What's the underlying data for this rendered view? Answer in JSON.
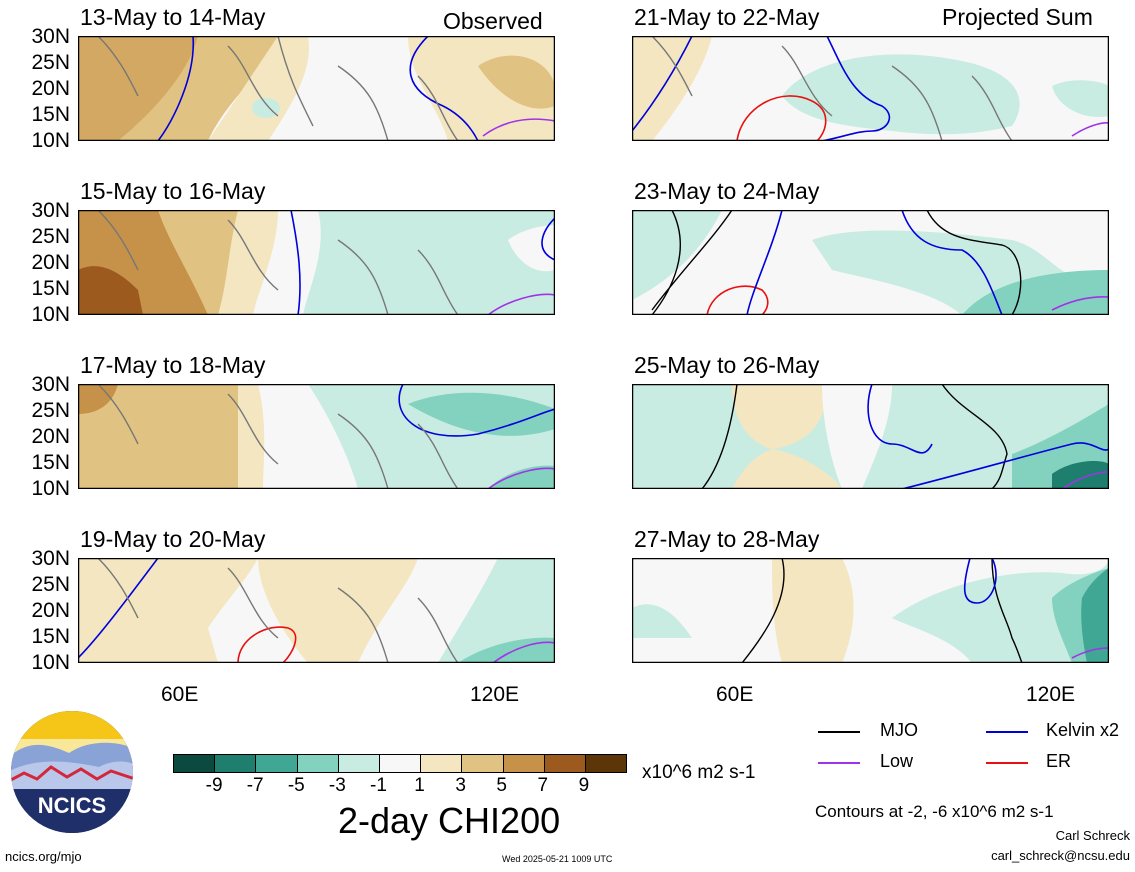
{
  "panels": [
    {
      "title": "13-May to 14-May",
      "tag": "Observed"
    },
    {
      "title": "21-May to 22-May",
      "tag": "Projected Sum"
    },
    {
      "title": "15-May to 16-May",
      "tag": ""
    },
    {
      "title": "23-May to 24-May",
      "tag": ""
    },
    {
      "title": "17-May to 18-May",
      "tag": ""
    },
    {
      "title": "25-May to 26-May",
      "tag": ""
    },
    {
      "title": "19-May to 20-May",
      "tag": ""
    },
    {
      "title": "27-May to 28-May",
      "tag": ""
    }
  ],
  "lat_labels": [
    "30N",
    "25N",
    "20N",
    "15N",
    "10N"
  ],
  "lon_labels": [
    "60E",
    "120E"
  ],
  "colorbar": {
    "colors": [
      "#0b4a3e",
      "#1f7f6e",
      "#3fa794",
      "#83d1bf",
      "#c9ece2",
      "#f7f7f7",
      "#f3e6c1",
      "#e0c382",
      "#c69149",
      "#9c5a1e",
      "#5c3508"
    ],
    "ticks": [
      "-9",
      "-7",
      "-5",
      "-3",
      "-1",
      "1",
      "3",
      "5",
      "7",
      "9"
    ],
    "units": "x10^6 m2 s-1"
  },
  "chart_title": "2-day CHI200",
  "legend": [
    {
      "label": "MJO",
      "color": "#000000"
    },
    {
      "label": "Kelvin x2",
      "color": "#0000dd"
    },
    {
      "label": "Low",
      "color": "#a033e8"
    },
    {
      "label": "ER",
      "color": "#e81010"
    }
  ],
  "contour_note": "Contours at -2, -6 x10^6 m2 s-1",
  "author": "Carl Schreck",
  "email": "carl_schreck@ncsu.edu",
  "website": "ncics.org/mjo",
  "timestamp": "Wed 2025-05-21 1009 UTC",
  "logo_text": "NCICS"
}
